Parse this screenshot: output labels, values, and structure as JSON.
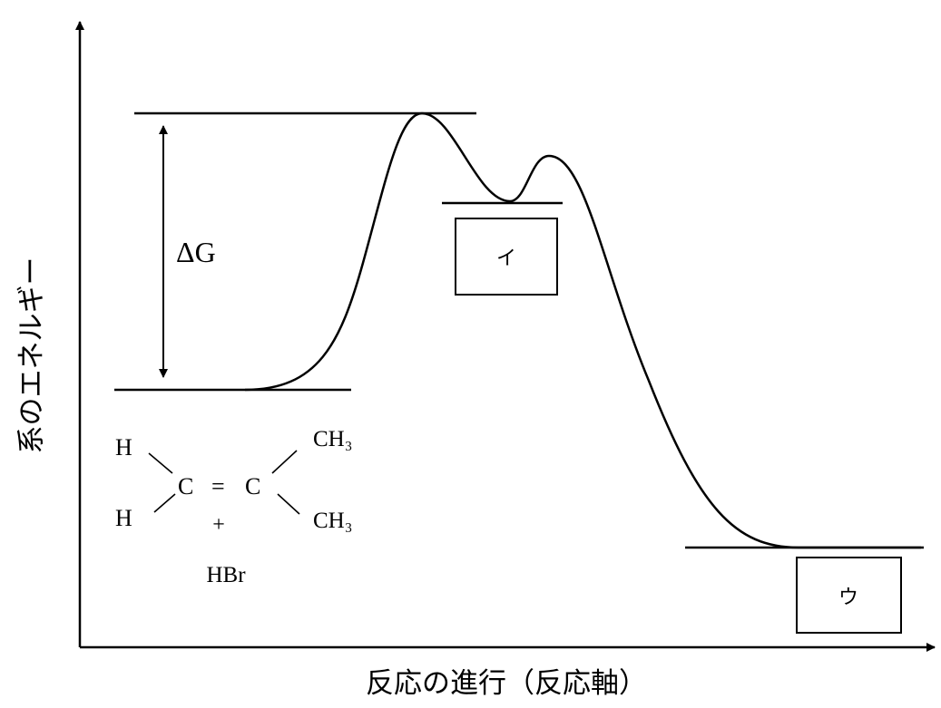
{
  "axes": {
    "y_label": "系のエネルギー",
    "x_label": "反応の進行（反応軸）"
  },
  "delta_g_label": "ΔG",
  "boxes": {
    "intermediate": "イ",
    "product": "ウ"
  },
  "reactant": {
    "h_top": "H",
    "h_bottom": "H",
    "c_left": "C",
    "double_bond": "=",
    "c_right": "C",
    "ch3_top": "CH₃",
    "ch3_bottom": "CH₃",
    "plus": "+",
    "reagent": "HBr"
  }
}
